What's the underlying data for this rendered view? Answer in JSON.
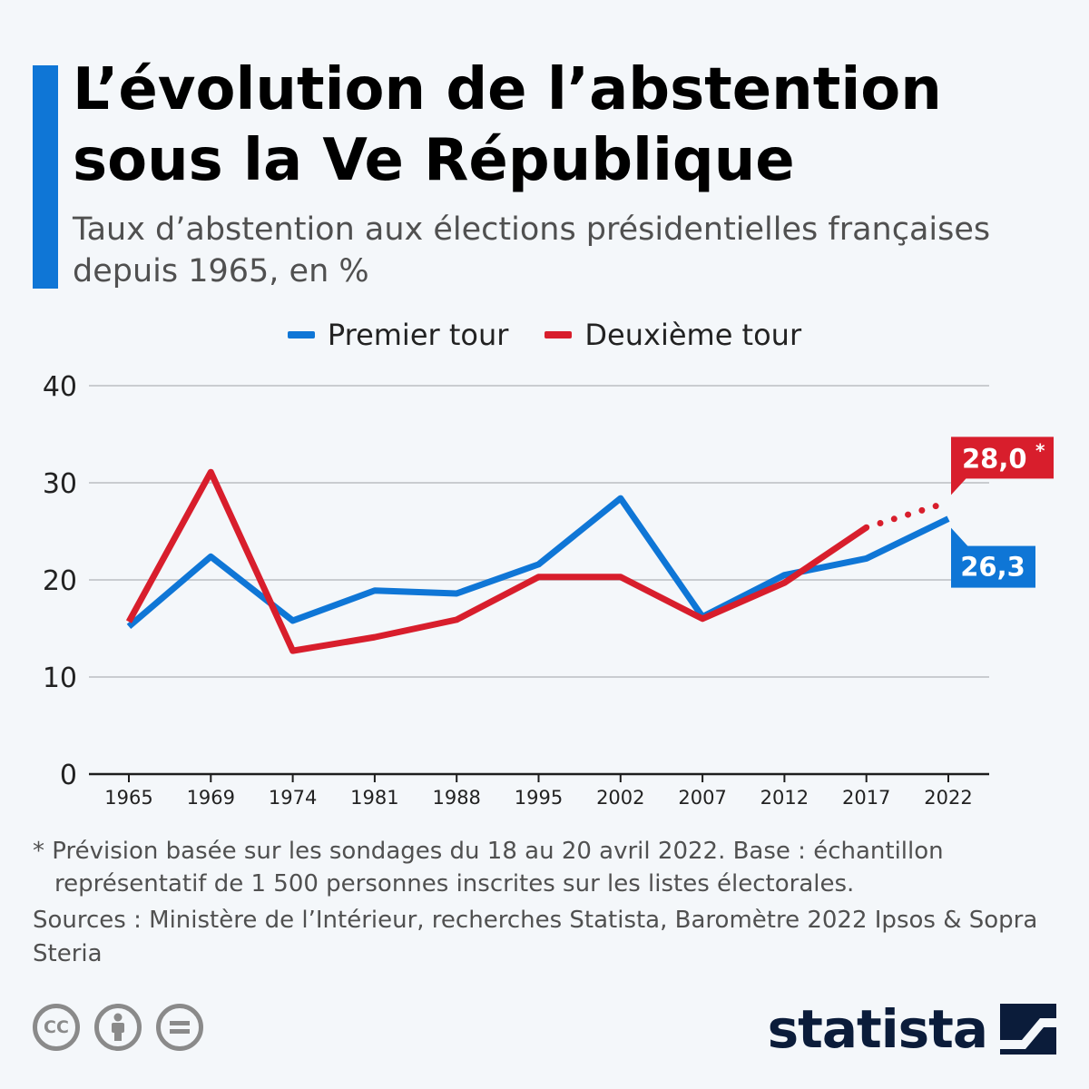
{
  "title": "L’évolution de l’abstention sous la Ve République",
  "subtitle": "Taux d’abstention aux élections présidentielles françaises depuis 1965, en %",
  "colors": {
    "accent": "#0f76d6",
    "premier": "#0f76d6",
    "deuxieme": "#d81e2c"
  },
  "chart_data": {
    "type": "line",
    "categories": [
      "1965",
      "1969",
      "1974",
      "1981",
      "1988",
      "1995",
      "2002",
      "2007",
      "2012",
      "2017",
      "2022"
    ],
    "series": [
      {
        "name": "Premier tour",
        "values": [
          15.2,
          22.4,
          15.8,
          18.9,
          18.6,
          21.6,
          28.4,
          16.2,
          20.5,
          22.2,
          26.3
        ]
      },
      {
        "name": "Deuxième tour",
        "values": [
          15.7,
          31.1,
          12.7,
          14.1,
          15.9,
          20.3,
          20.3,
          16.0,
          19.7,
          25.4,
          28.0
        ],
        "forecast_from_index": 9
      }
    ],
    "y_ticks": [
      "0",
      "10",
      "20",
      "30",
      "40"
    ],
    "ylim": [
      0,
      40
    ],
    "grid": true,
    "legend_position": "top-center",
    "callouts": {
      "premier": "26,3",
      "deuxieme": "28,0",
      "deuxieme_mark": "*"
    }
  },
  "footnote": "* Prévision basée sur les sondages du 18 au 20 avril 2022. Base : échantillon représentatif de 1 500 personnes inscrites sur les listes électorales.",
  "sources": {
    "label": "Sources :",
    "text": "Ministère de l’Intérieur, recherches Statista, Baromètre 2022 Ipsos & Sopra Steria"
  },
  "license_icons": {
    "cc": "CC",
    "by": "i",
    "nd": "="
  },
  "brand": "statista"
}
